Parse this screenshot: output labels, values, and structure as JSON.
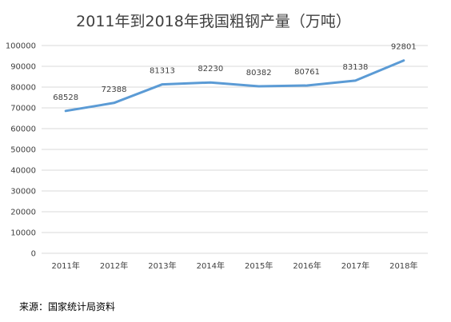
{
  "chart_data": {
    "type": "line",
    "title": "2011年到2018年我国粗钢产量（万吨）",
    "categories": [
      "2011年",
      "2012年",
      "2013年",
      "2014年",
      "2015年",
      "2016年",
      "2017年",
      "2018年"
    ],
    "series": [
      {
        "values": [
          68528,
          72388,
          81313,
          82230,
          80382,
          80761,
          83138,
          92801
        ]
      }
    ],
    "data_labels": [
      "68528",
      "72388",
      "81313",
      "82230",
      "80382",
      "80761",
      "83138",
      "92801"
    ],
    "ylim": [
      0,
      100000
    ],
    "y_ticks": [
      0,
      10000,
      20000,
      30000,
      40000,
      50000,
      60000,
      70000,
      80000,
      90000,
      100000
    ],
    "y_tick_labels": [
      "0",
      "10000",
      "20000",
      "30000",
      "40000",
      "50000",
      "60000",
      "70000",
      "80000",
      "90000",
      "100000"
    ],
    "grid": true,
    "line_color": "#5b9bd5",
    "grid_color": "#d9d9d9"
  },
  "source": "来源：国家统计局资料"
}
